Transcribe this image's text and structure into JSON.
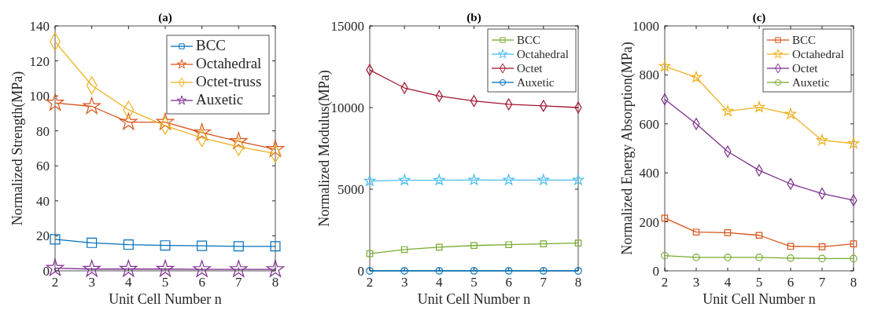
{
  "chart_data": [
    {
      "type": "line",
      "title": "(a)",
      "xlabel": "Unit Cell Number n",
      "ylabel": "Normalized Strength(MPa)",
      "x": [
        2,
        3,
        4,
        5,
        6,
        7,
        8
      ],
      "xlim": [
        2,
        8
      ],
      "xticks": [
        2,
        3,
        4,
        5,
        6,
        7,
        8
      ],
      "ylim": [
        0,
        140
      ],
      "yticks": [
        0,
        20,
        40,
        60,
        80,
        100,
        120,
        140
      ],
      "legend": "top right",
      "series": [
        {
          "name": "BCC",
          "color": "#0072bd",
          "marker": "square",
          "values": [
            18,
            16,
            15,
            14.5,
            14.3,
            14,
            14
          ]
        },
        {
          "name": "Octahedral",
          "color": "#d95319",
          "marker": "star",
          "values": [
            96,
            94,
            85,
            85,
            79,
            74,
            69.5
          ]
        },
        {
          "name": "Octet-truss",
          "color": "#edb120",
          "marker": "diamond",
          "values": [
            131,
            106,
            92,
            83,
            76,
            71,
            67
          ]
        },
        {
          "name": "Auxetic",
          "color": "#7e2f8e",
          "marker": "star",
          "values": [
            1.5,
            1,
            1,
            1,
            0.8,
            0.8,
            0.8
          ]
        }
      ]
    },
    {
      "type": "line",
      "title": "(b)",
      "xlabel": "Unit Cell Number n",
      "ylabel": "Normalized Modulus(MPa)",
      "x": [
        2,
        3,
        4,
        5,
        6,
        7,
        8
      ],
      "xlim": [
        2,
        8
      ],
      "xticks": [
        2,
        3,
        4,
        5,
        6,
        7,
        8
      ],
      "ylim": [
        0,
        15000
      ],
      "yticks": [
        0,
        5000,
        10000,
        15000
      ],
      "legend": "top right",
      "series": [
        {
          "name": "BCC",
          "color": "#77ac30",
          "marker": "square",
          "values": [
            1050,
            1300,
            1450,
            1550,
            1600,
            1650,
            1700
          ]
        },
        {
          "name": "Octahedral",
          "color": "#4dbeee",
          "marker": "star",
          "values": [
            5500,
            5550,
            5550,
            5560,
            5560,
            5560,
            5560
          ]
        },
        {
          "name": "Octet",
          "color": "#a2142f",
          "marker": "diamond",
          "values": [
            12300,
            11200,
            10700,
            10400,
            10200,
            10100,
            10000
          ]
        },
        {
          "name": "Auxetic",
          "color": "#0072bd",
          "marker": "circle",
          "values": [
            0,
            0,
            0,
            0,
            0,
            0,
            0
          ]
        }
      ]
    },
    {
      "type": "line",
      "title": "(c)",
      "xlabel": "Unit Cell Number n",
      "ylabel": "Normalized Energy Absorption(MPa)",
      "x": [
        2,
        3,
        4,
        5,
        6,
        7,
        8
      ],
      "xlim": [
        2,
        8
      ],
      "xticks": [
        2,
        3,
        4,
        5,
        6,
        7,
        8
      ],
      "ylim": [
        0,
        1000
      ],
      "yticks": [
        0,
        200,
        400,
        600,
        800,
        1000
      ],
      "legend": "top right",
      "series": [
        {
          "name": "BCC",
          "color": "#d95319",
          "marker": "square",
          "values": [
            215,
            158,
            156,
            145,
            100,
            98,
            110
          ]
        },
        {
          "name": "Octahedral",
          "color": "#edb120",
          "marker": "star",
          "values": [
            835,
            790,
            652,
            668,
            640,
            533,
            520
          ]
        },
        {
          "name": "Octet",
          "color": "#7e2f8e",
          "marker": "diamond",
          "values": [
            700,
            600,
            487,
            410,
            355,
            315,
            288
          ]
        },
        {
          "name": "Auxetic",
          "color": "#77ac30",
          "marker": "circle",
          "values": [
            62,
            55,
            55,
            55,
            52,
            50,
            50
          ]
        }
      ]
    }
  ]
}
